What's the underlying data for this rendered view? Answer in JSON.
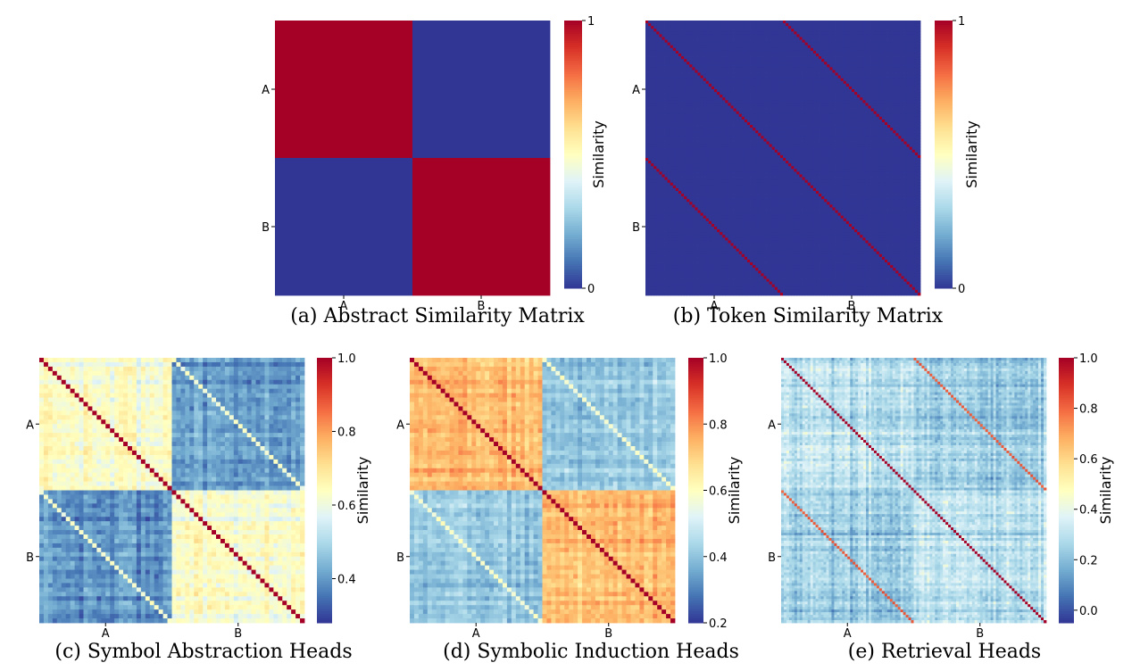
{
  "colormap": [
    "#313695",
    "#4575b4",
    "#74add1",
    "#abd9e9",
    "#e0f3f8",
    "#ffffbf",
    "#fee090",
    "#fdae61",
    "#f46d43",
    "#d73027",
    "#a50026"
  ],
  "chart_data": [
    {
      "type": "heatmap",
      "panel": "a",
      "caption": "(a)  Abstract Similarity Matrix",
      "pattern": "block",
      "size": 2,
      "xticks": [
        "A",
        "B"
      ],
      "yticks": [
        "A",
        "B"
      ],
      "colorbar_label": "Similarity",
      "vmin": 0,
      "vmax": 1,
      "colorbar_ticks": [
        0,
        1
      ],
      "colorbar_tick_labels": [
        "0",
        "1"
      ],
      "matrix": [
        [
          1,
          0
        ],
        [
          0,
          1
        ]
      ]
    },
    {
      "type": "heatmap",
      "panel": "b",
      "caption": "(b)  Token Similarity Matrix",
      "pattern": "token-diagonals",
      "size": 100,
      "xticks": [
        "A",
        "B"
      ],
      "yticks": [
        "A",
        "B"
      ],
      "colorbar_label": "Similarity",
      "vmin": 0,
      "vmax": 1,
      "colorbar_ticks": [
        0,
        1
      ],
      "colorbar_tick_labels": [
        "0",
        "1"
      ],
      "diagonal_value": 1,
      "cross_diagonal_value": 1,
      "background_value": 0
    },
    {
      "type": "heatmap",
      "panel": "c",
      "caption": "(c)  Symbol Abstraction Heads",
      "pattern": "noisy-blocks",
      "size": 60,
      "xticks": [
        "A",
        "B"
      ],
      "yticks": [
        "A",
        "B"
      ],
      "colorbar_label": "Similarity",
      "vmin": 0.28,
      "vmax": 1.0,
      "colorbar_ticks": [
        0.4,
        0.6,
        0.8,
        1.0
      ],
      "colorbar_tick_labels": [
        "0.4",
        "0.6",
        "0.8",
        "1.0"
      ],
      "diagonal_value": 1.0,
      "cross_diagonal_value": 0.62,
      "within_block_mean": 0.63,
      "between_block_mean": 0.4,
      "noise": 0.06,
      "seed": 7
    },
    {
      "type": "heatmap",
      "panel": "d",
      "caption": "(d)  Symbolic Induction Heads",
      "pattern": "noisy-blocks",
      "size": 60,
      "xticks": [
        "A",
        "B"
      ],
      "yticks": [
        "A",
        "B"
      ],
      "colorbar_label": "Similarity",
      "vmin": 0.2,
      "vmax": 1.0,
      "colorbar_ticks": [
        0.2,
        0.4,
        0.6,
        0.8,
        1.0
      ],
      "colorbar_tick_labels": [
        "0.2",
        "0.4",
        "0.6",
        "0.8",
        "1.0"
      ],
      "diagonal_value": 1.0,
      "cross_diagonal_value": 0.58,
      "within_block_mean": 0.74,
      "between_block_mean": 0.41,
      "noise": 0.06,
      "seed": 19
    },
    {
      "type": "heatmap",
      "panel": "e",
      "caption": "(e)  Retrieval Heads",
      "pattern": "noisy-blocks",
      "size": 100,
      "xticks": [
        "A",
        "B"
      ],
      "yticks": [
        "A",
        "B"
      ],
      "colorbar_label": "Similarity",
      "vmin": -0.05,
      "vmax": 1.0,
      "colorbar_ticks": [
        0.0,
        0.2,
        0.4,
        0.6,
        0.8,
        1.0
      ],
      "colorbar_tick_labels": [
        "0.0",
        "0.2",
        "0.4",
        "0.6",
        "0.8",
        "1.0"
      ],
      "diagonal_value": 1.0,
      "cross_diagonal_value": 0.82,
      "within_block_mean": 0.3,
      "between_block_mean": 0.24,
      "noise": 0.09,
      "seed": 31
    }
  ]
}
